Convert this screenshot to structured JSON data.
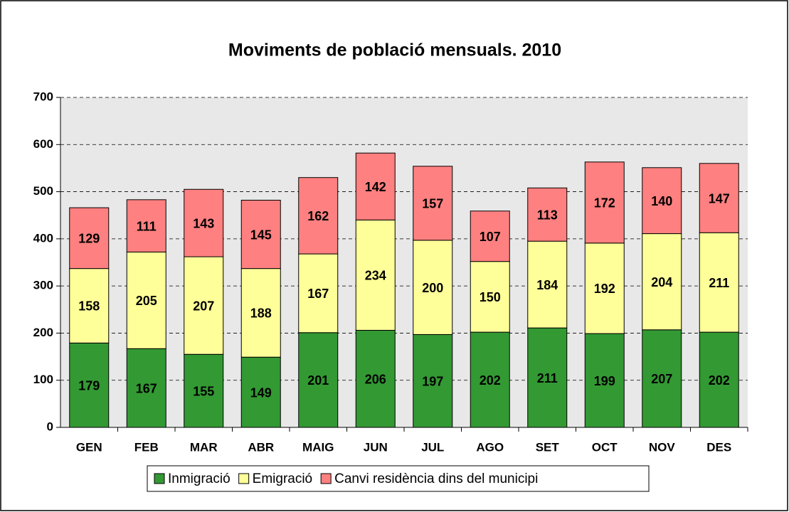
{
  "chart_data": {
    "type": "stacked_bar",
    "title": "Moviments de població mensuals. 2010",
    "categories": [
      "GEN",
      "FEB",
      "MAR",
      "ABR",
      "MAIG",
      "JUN",
      "JUL",
      "AGO",
      "SET",
      "OCT",
      "NOV",
      "DES"
    ],
    "series": [
      {
        "name": "Inmigració",
        "color": "#339933",
        "values": [
          179,
          167,
          155,
          149,
          201,
          206,
          197,
          202,
          211,
          199,
          207,
          202
        ]
      },
      {
        "name": "Emigració",
        "color": "#ffff99",
        "values": [
          158,
          205,
          207,
          188,
          167,
          234,
          200,
          150,
          184,
          192,
          204,
          211
        ]
      },
      {
        "name": "Canvi residència dins del municipi",
        "color": "#ff8080",
        "values": [
          129,
          111,
          143,
          145,
          162,
          142,
          157,
          107,
          113,
          172,
          140,
          147
        ]
      }
    ],
    "ylim": [
      0,
      700
    ],
    "yticks": [
      0,
      100,
      200,
      300,
      400,
      500,
      600,
      700
    ],
    "grid": true,
    "legend": "bottom"
  }
}
